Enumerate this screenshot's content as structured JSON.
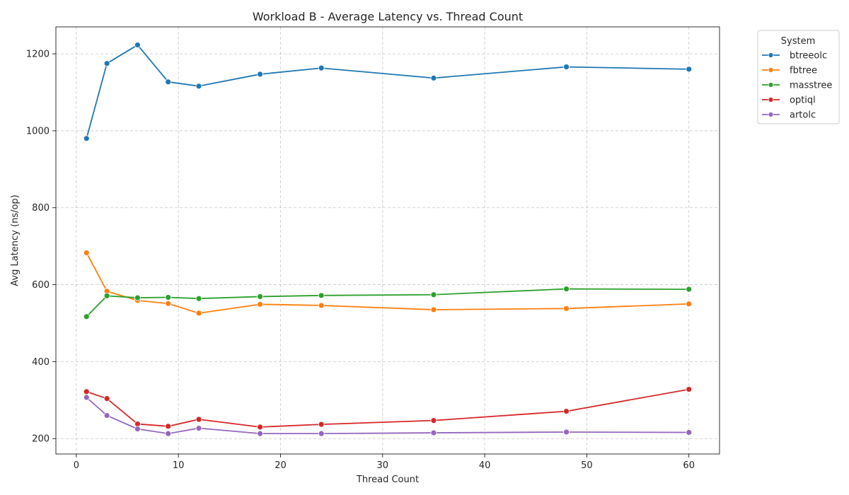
{
  "chart_data": {
    "type": "line",
    "title": "Workload B - Average Latency vs. Thread Count",
    "xlabel": "Thread Count",
    "ylabel": "Avg Latency (ns/op)",
    "xlim": [
      -2,
      63
    ],
    "ylim": [
      160,
      1270
    ],
    "xticks": [
      0,
      10,
      20,
      30,
      40,
      50,
      60
    ],
    "yticks": [
      200,
      400,
      600,
      800,
      1000,
      1200
    ],
    "grid": true,
    "legend": {
      "title": "System",
      "placement": "outside top-right"
    },
    "x": [
      1,
      3,
      6,
      9,
      12,
      18,
      24,
      35,
      48,
      60
    ],
    "series": [
      {
        "name": "btreeolc",
        "color": "#1f77b4",
        "values": [
          980,
          1175,
          1223,
          1127,
          1116,
          1147,
          1163,
          1137,
          1166,
          1160
        ]
      },
      {
        "name": "fbtree",
        "color": "#ff7f0e",
        "values": [
          683,
          583,
          559,
          551,
          526,
          549,
          546,
          535,
          538,
          550
        ]
      },
      {
        "name": "masstree",
        "color": "#2ca02c",
        "values": [
          517,
          571,
          566,
          567,
          564,
          569,
          572,
          574,
          589,
          588
        ]
      },
      {
        "name": "optiql",
        "color": "#d62728",
        "values": [
          322,
          304,
          238,
          232,
          250,
          230,
          237,
          247,
          271,
          328
        ]
      },
      {
        "name": "artolc",
        "color": "#9467bd",
        "values": [
          307,
          260,
          225,
          213,
          227,
          213,
          213,
          215,
          217,
          216
        ]
      }
    ]
  }
}
